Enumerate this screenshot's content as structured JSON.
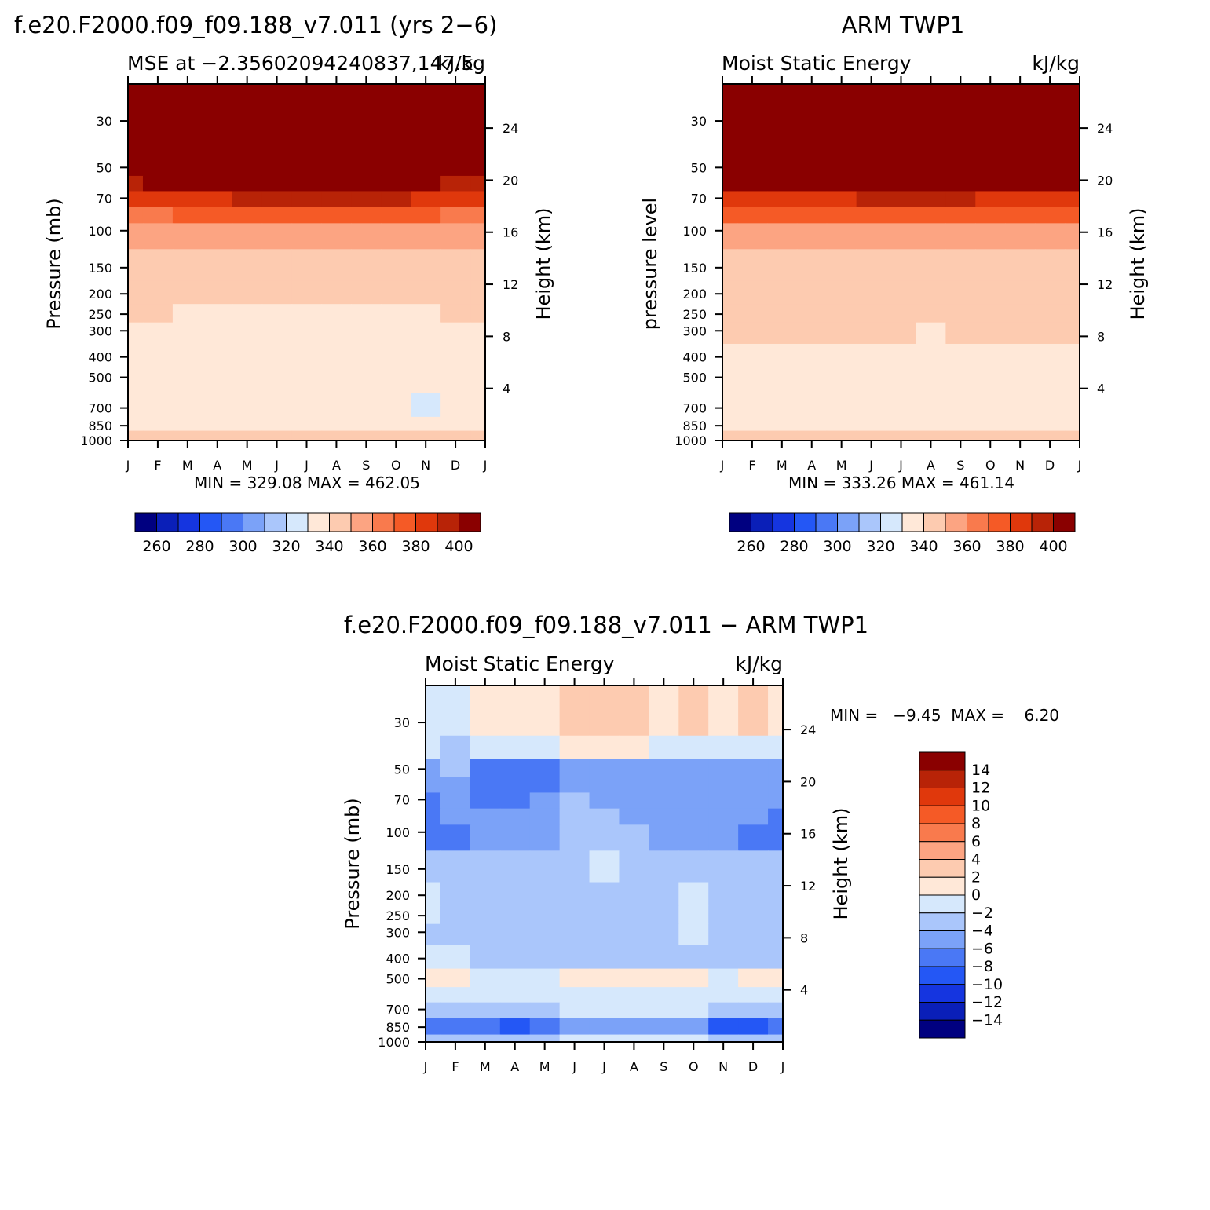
{
  "palette": {
    "levels_abs": [
      250,
      260,
      270,
      280,
      290,
      300,
      310,
      320,
      330,
      340,
      350,
      360,
      370,
      380,
      390,
      400,
      410
    ],
    "levels_diff": [
      -16,
      -14,
      -12,
      -10,
      -8,
      -6,
      -4,
      -2,
      0,
      2,
      4,
      6,
      8,
      10,
      12,
      14,
      16
    ],
    "colors": [
      "#000080",
      "#0a1fb8",
      "#1535e0",
      "#2457f5",
      "#4a78f5",
      "#7ba2f8",
      "#aac6fb",
      "#d6e8fc",
      "#ffe8d8",
      "#fdcbb0",
      "#fca482",
      "#f97a4d",
      "#f55a26",
      "#e0380c",
      "#b82307",
      "#8a0000"
    ]
  },
  "chart_data": [
    {
      "type": "heatmap",
      "id": "model",
      "title": "f.e20.F2000.f09_f09.188_v7.011 (yrs 2−6)",
      "subtitle_left": "MSE at −2.35602094240837,147.5",
      "subtitle_right": "kJ/kg",
      "ylabel_left": "Pressure (mb)",
      "ylabel_right": "Height (km)",
      "x_ticks": [
        "J",
        "F",
        "M",
        "A",
        "M",
        "J",
        "J",
        "A",
        "S",
        "O",
        "N",
        "D",
        "J"
      ],
      "y_ticks": [
        30,
        50,
        70,
        100,
        150,
        200,
        250,
        300,
        400,
        500,
        700,
        850,
        1000
      ],
      "y_scale": "log",
      "height_ticks": [
        24,
        20,
        16,
        12,
        8,
        4
      ],
      "min_label": "MIN = 329.08  MAX = 462.05",
      "colorbar_labels": [
        "260",
        "280",
        "300",
        "320",
        "340",
        "360",
        "380",
        "400"
      ],
      "months": [
        "J",
        "F",
        "M",
        "A",
        "M",
        "J",
        "J",
        "A",
        "S",
        "O",
        "N",
        "D",
        "J"
      ],
      "pressure": [
        30,
        50,
        60,
        70,
        85,
        100,
        150,
        200,
        250,
        300,
        400,
        500,
        700,
        850,
        950,
        1000
      ],
      "values": [
        [
          462,
          455,
          458,
          460,
          461,
          462,
          462,
          462,
          461,
          460,
          459,
          458,
          462
        ],
        [
          410,
          412,
          410,
          410,
          411,
          412,
          412,
          412,
          412,
          411,
          411,
          410,
          410
        ],
        [
          395,
          400,
          400,
          401,
          402,
          404,
          405,
          405,
          404,
          403,
          401,
          398,
          395
        ],
        [
          380,
          385,
          387,
          388,
          390,
          392,
          393,
          393,
          392,
          390,
          388,
          385,
          380
        ],
        [
          362,
          368,
          370,
          372,
          374,
          376,
          377,
          377,
          376,
          375,
          372,
          368,
          362
        ],
        [
          352,
          350,
          352,
          355,
          356,
          357,
          358,
          359,
          357,
          356,
          355,
          354,
          352
        ],
        [
          345,
          344,
          345,
          346,
          347,
          347,
          347,
          347,
          347,
          347,
          347,
          346,
          345
        ],
        [
          342,
          341,
          342,
          342,
          342,
          341,
          341,
          340,
          341,
          341,
          341,
          342,
          342
        ],
        [
          341,
          340,
          339,
          338,
          338,
          338,
          337,
          337,
          338,
          338,
          339,
          340,
          341
        ],
        [
          339,
          338,
          337,
          336,
          336,
          335,
          335,
          335,
          335,
          336,
          336,
          337,
          339
        ],
        [
          336,
          336,
          335,
          335,
          335,
          334,
          334,
          334,
          334,
          334,
          334,
          335,
          336
        ],
        [
          334,
          334,
          333,
          333,
          333,
          333,
          333,
          333,
          333,
          333,
          333,
          334,
          334
        ],
        [
          335,
          335,
          335,
          335,
          335,
          335,
          335,
          334,
          334,
          332,
          329,
          334,
          335
        ],
        [
          336,
          336,
          336,
          336,
          336,
          336,
          336,
          336,
          336,
          336,
          336,
          336,
          336
        ],
        [
          340,
          340,
          340,
          340,
          340,
          340,
          340,
          340,
          340,
          340,
          340,
          340,
          340
        ],
        [
          342,
          342,
          342,
          342,
          342,
          342,
          342,
          342,
          342,
          342,
          342,
          342,
          342
        ]
      ]
    },
    {
      "type": "heatmap",
      "id": "obs",
      "title": "ARM TWP1",
      "subtitle_left": "Moist Static Energy",
      "subtitle_right": "kJ/kg",
      "ylabel_left": "pressure level",
      "ylabel_right": "Height (km)",
      "x_ticks": [
        "J",
        "F",
        "M",
        "A",
        "M",
        "J",
        "J",
        "A",
        "S",
        "O",
        "N",
        "D",
        "J"
      ],
      "y_ticks": [
        30,
        50,
        70,
        100,
        150,
        200,
        250,
        300,
        400,
        500,
        700,
        850,
        1000
      ],
      "y_scale": "log",
      "height_ticks": [
        24,
        20,
        16,
        12,
        8,
        4
      ],
      "min_label": "MIN = 333.26  MAX = 461.14",
      "colorbar_labels": [
        "260",
        "280",
        "300",
        "320",
        "340",
        "360",
        "380",
        "400"
      ],
      "months": [
        "J",
        "F",
        "M",
        "A",
        "M",
        "J",
        "J",
        "A",
        "S",
        "O",
        "N",
        "D",
        "J"
      ],
      "pressure": [
        30,
        50,
        60,
        70,
        85,
        100,
        150,
        200,
        250,
        300,
        400,
        500,
        700,
        850,
        950,
        1000
      ],
      "values": [
        [
          461,
          458,
          459,
          460,
          461,
          461,
          461,
          461,
          461,
          460,
          460,
          459,
          461
        ],
        [
          413,
          413,
          413,
          413,
          413,
          413,
          413,
          413,
          413,
          413,
          413,
          413,
          413
        ],
        [
          402,
          403,
          404,
          404,
          405,
          405,
          406,
          407,
          405,
          404,
          403,
          402,
          402
        ],
        [
          385,
          386,
          386,
          387,
          388,
          390,
          391,
          392,
          391,
          389,
          387,
          386,
          385
        ],
        [
          370,
          372,
          373,
          374,
          374,
          375,
          376,
          377,
          376,
          375,
          373,
          372,
          370
        ],
        [
          356,
          356,
          357,
          357,
          357,
          357,
          358,
          358,
          358,
          357,
          357,
          356,
          356
        ],
        [
          349,
          349,
          349,
          349,
          349,
          349,
          349,
          349,
          349,
          349,
          349,
          349,
          349
        ],
        [
          346,
          346,
          346,
          346,
          346,
          345,
          345,
          345,
          345,
          345,
          346,
          346,
          346
        ],
        [
          343,
          343,
          343,
          343,
          343,
          342,
          342,
          341,
          342,
          342,
          343,
          343,
          343
        ],
        [
          342,
          342,
          342,
          342,
          342,
          340,
          340,
          339,
          340,
          340,
          341,
          341,
          342
        ],
        [
          339,
          339,
          339,
          339,
          339,
          338,
          338,
          337,
          338,
          338,
          338,
          338,
          339
        ],
        [
          336,
          336,
          336,
          336,
          336,
          336,
          336,
          336,
          336,
          336,
          336,
          336,
          336
        ],
        [
          334,
          334,
          334,
          334,
          334,
          334,
          334,
          334,
          334,
          334,
          334,
          334,
          334
        ],
        [
          338,
          337,
          336,
          336,
          337,
          336,
          336,
          336,
          336,
          336,
          338,
          338,
          338
        ],
        [
          341,
          341,
          341,
          341,
          341,
          341,
          341,
          341,
          341,
          341,
          341,
          341,
          341
        ],
        [
          342,
          342,
          342,
          342,
          342,
          342,
          342,
          342,
          342,
          342,
          342,
          342,
          342
        ]
      ]
    },
    {
      "type": "heatmap",
      "id": "diff",
      "title": "f.e20.F2000.f09_f09.188_v7.011 − ARM TWP1",
      "subtitle_left": "Moist Static Energy",
      "subtitle_right": "kJ/kg",
      "ylabel_left": "Pressure (mb)",
      "ylabel_right": "Height (km)",
      "x_ticks": [
        "J",
        "F",
        "M",
        "A",
        "M",
        "J",
        "J",
        "A",
        "S",
        "O",
        "N",
        "D",
        "J"
      ],
      "y_ticks": [
        30,
        50,
        70,
        100,
        150,
        200,
        250,
        300,
        400,
        500,
        700,
        850,
        1000
      ],
      "y_scale": "log",
      "height_ticks": [
        24,
        20,
        16,
        12,
        8,
        4
      ],
      "min_label": "MIN =   −9.45  MAX =    6.20",
      "colorbar_labels": [
        "14",
        "12",
        "10",
        "8",
        "6",
        "4",
        "2",
        "0",
        "−2",
        "−4",
        "−6",
        "−8",
        "−10",
        "−12",
        "−14"
      ],
      "months": [
        "J",
        "F",
        "M",
        "A",
        "M",
        "J",
        "J",
        "A",
        "S",
        "O",
        "N",
        "D",
        "J"
      ],
      "pressure": [
        30,
        40,
        50,
        60,
        70,
        85,
        100,
        150,
        200,
        250,
        300,
        400,
        500,
        600,
        700,
        850,
        1000
      ],
      "values": [
        [
          -1,
          -1,
          1,
          1,
          1,
          2,
          3,
          2,
          1,
          2,
          1,
          2,
          1
        ],
        [
          -1,
          -3,
          -1,
          -1,
          -1,
          1,
          1,
          1,
          -1,
          -1,
          -1,
          -1,
          -1
        ],
        [
          -5,
          -4,
          -7,
          -7,
          -7,
          -5,
          -5,
          -5,
          -5,
          -5,
          -5,
          -5,
          -5
        ],
        [
          -5,
          -5,
          -7,
          -7,
          -7,
          -5,
          -5,
          -5,
          -5,
          -5,
          -5,
          -5,
          -5
        ],
        [
          -7,
          -5,
          -7,
          -7,
          -5,
          -3,
          -5,
          -5,
          -5,
          -5,
          -5,
          -5,
          -5
        ],
        [
          -7,
          -5,
          -5,
          -5,
          -5,
          -3,
          -3,
          -5,
          -5,
          -5,
          -5,
          -5,
          -7
        ],
        [
          -7,
          -7,
          -5,
          -5,
          -5,
          -3,
          -3,
          -3,
          -5,
          -5,
          -5,
          -7,
          -7
        ],
        [
          -3,
          -3,
          -3,
          -3,
          -3,
          -3,
          -1,
          -3,
          -3,
          -3,
          -3,
          -3,
          -3
        ],
        [
          -1,
          -3,
          -3,
          -3,
          -3,
          -3,
          -3,
          -3,
          -3,
          -1,
          -3,
          -3,
          -3
        ],
        [
          -1,
          -3,
          -3,
          -3,
          -3,
          -3,
          -3,
          -3,
          -3,
          -1,
          -3,
          -3,
          -3
        ],
        [
          -3,
          -3,
          -3,
          -3,
          -3,
          -3,
          -3,
          -3,
          -3,
          -1,
          -3,
          -3,
          -3
        ],
        [
          -1,
          -1,
          -3,
          -3,
          -3,
          -3,
          -3,
          -3,
          -3,
          -3,
          -3,
          -3,
          -3
        ],
        [
          1,
          1,
          -1,
          -1,
          -1,
          1,
          1,
          1,
          1,
          1,
          -1,
          1,
          1
        ],
        [
          -1,
          -1,
          -1,
          -1,
          -1,
          -1,
          -1,
          -1,
          -1,
          -1,
          -1,
          -1,
          -1
        ],
        [
          -3,
          -3,
          -3,
          -3,
          -3,
          -1,
          -1,
          -1,
          -1,
          -1,
          -3,
          -3,
          -3
        ],
        [
          -7,
          -7,
          -7,
          -9,
          -7,
          -5,
          -5,
          -5,
          -5,
          -5,
          -9,
          -9,
          -7
        ],
        [
          -3,
          -3,
          -3,
          -3,
          -3,
          -1,
          -1,
          -1,
          -1,
          -1,
          -3,
          -3,
          -3
        ]
      ]
    }
  ]
}
